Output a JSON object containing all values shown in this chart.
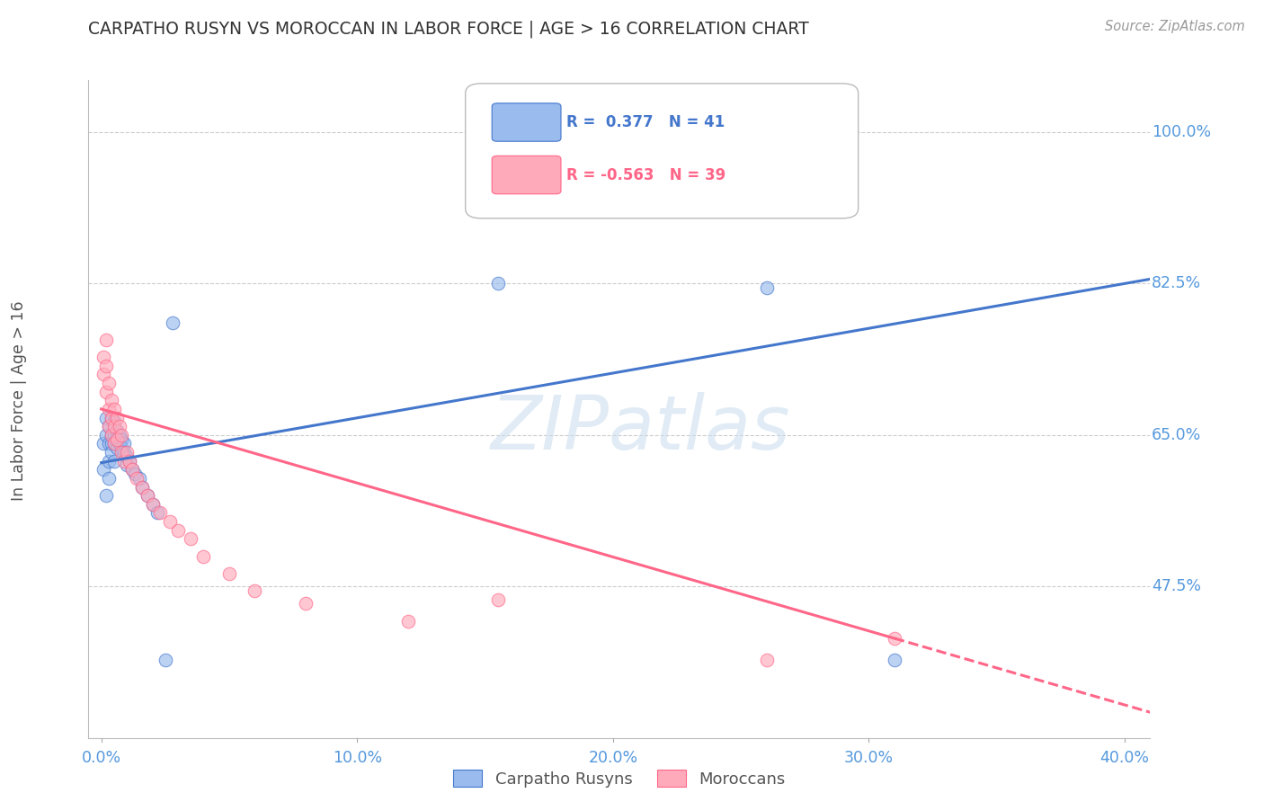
{
  "title": "CARPATHO RUSYN VS MOROCCAN IN LABOR FORCE | AGE > 16 CORRELATION CHART",
  "source": "Source: ZipAtlas.com",
  "ylabel": "In Labor Force | Age > 16",
  "r_blue": 0.377,
  "n_blue": 41,
  "r_pink": -0.563,
  "n_pink": 39,
  "blue_color": "#99BBEE",
  "pink_color": "#FFAABB",
  "blue_line_color": "#4477CC",
  "pink_line_color": "#FF6688",
  "axis_label_color": "#5599DD",
  "background_color": "#FFFFFF",
  "grid_color": "#CCCCCC",
  "watermark_color": "#C8DCEE",
  "blue_x": [
    0.001,
    0.001,
    0.002,
    0.002,
    0.002,
    0.003,
    0.003,
    0.003,
    0.003,
    0.004,
    0.004,
    0.004,
    0.004,
    0.005,
    0.005,
    0.005,
    0.005,
    0.006,
    0.006,
    0.006,
    0.007,
    0.007,
    0.008,
    0.008,
    0.009,
    0.009,
    0.01,
    0.01,
    0.011,
    0.012,
    0.013,
    0.015,
    0.016,
    0.018,
    0.02,
    0.022,
    0.025,
    0.028,
    0.155,
    0.26,
    0.31
  ],
  "blue_y": [
    0.64,
    0.61,
    0.67,
    0.65,
    0.58,
    0.66,
    0.64,
    0.62,
    0.6,
    0.67,
    0.65,
    0.64,
    0.63,
    0.665,
    0.65,
    0.64,
    0.62,
    0.655,
    0.645,
    0.635,
    0.65,
    0.64,
    0.645,
    0.635,
    0.64,
    0.63,
    0.625,
    0.615,
    0.62,
    0.61,
    0.605,
    0.6,
    0.59,
    0.58,
    0.57,
    0.56,
    0.39,
    0.78,
    0.825,
    0.82,
    0.39
  ],
  "pink_x": [
    0.001,
    0.001,
    0.002,
    0.002,
    0.002,
    0.003,
    0.003,
    0.003,
    0.004,
    0.004,
    0.004,
    0.005,
    0.005,
    0.005,
    0.006,
    0.006,
    0.007,
    0.008,
    0.008,
    0.009,
    0.01,
    0.011,
    0.012,
    0.014,
    0.016,
    0.018,
    0.02,
    0.023,
    0.027,
    0.03,
    0.035,
    0.04,
    0.05,
    0.06,
    0.08,
    0.12,
    0.155,
    0.26,
    0.31
  ],
  "pink_y": [
    0.74,
    0.72,
    0.76,
    0.73,
    0.7,
    0.71,
    0.68,
    0.66,
    0.69,
    0.67,
    0.65,
    0.68,
    0.66,
    0.64,
    0.67,
    0.645,
    0.66,
    0.65,
    0.63,
    0.62,
    0.63,
    0.62,
    0.61,
    0.6,
    0.59,
    0.58,
    0.57,
    0.56,
    0.55,
    0.54,
    0.53,
    0.51,
    0.49,
    0.47,
    0.455,
    0.435,
    0.46,
    0.39,
    0.415
  ],
  "xlim": [
    -0.005,
    0.41
  ],
  "ylim": [
    0.3,
    1.06
  ],
  "ytick_positions": [
    0.475,
    0.65,
    0.825,
    1.0
  ],
  "ytick_labels": [
    "47.5%",
    "65.0%",
    "82.5%",
    "100.0%"
  ],
  "xtick_positions": [
    0.0,
    0.1,
    0.2,
    0.3,
    0.4
  ],
  "xtick_labels": [
    "0.0%",
    "10.0%",
    "20.0%",
    "30.0%",
    "40.0%"
  ]
}
